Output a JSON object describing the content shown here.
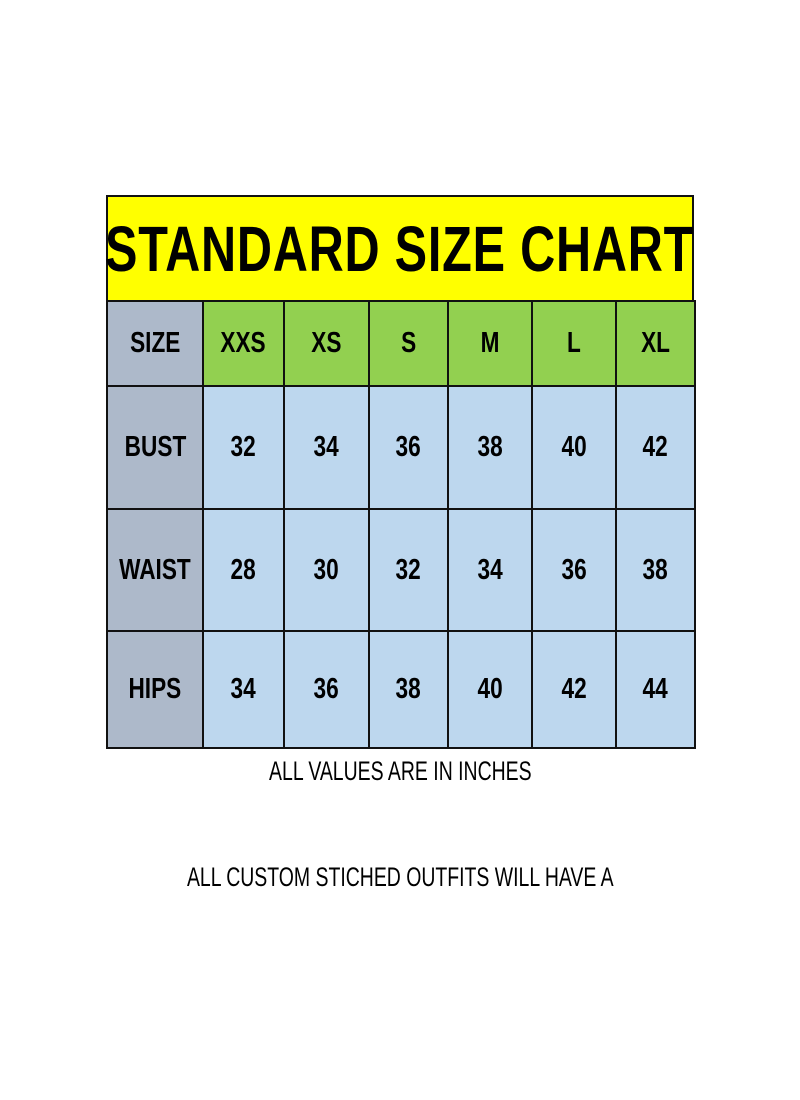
{
  "title": "STANDARD  SIZE  CHART",
  "table": {
    "corner": "SIZE",
    "columns": [
      "XXS",
      "XS",
      "S",
      "M",
      "L",
      "XL"
    ],
    "rows": [
      {
        "label": "BUST",
        "values": [
          "32",
          "34",
          "36",
          "38",
          "40",
          "42"
        ]
      },
      {
        "label": "WAIST",
        "values": [
          "28",
          "30",
          "32",
          "34",
          "36",
          "38"
        ]
      },
      {
        "label": "HIPS",
        "values": [
          "34",
          "36",
          "38",
          "40",
          "42",
          "44"
        ]
      }
    ]
  },
  "notes": {
    "units": "ALL VALUES ARE IN INCHES",
    "custom": "ALL CUSTOM STICHED OUTFITS WILL HAVE A"
  },
  "colors": {
    "title_bg": "#ffff00",
    "size_header_bg": "#92d050",
    "row_header_bg": "#adb9ca",
    "value_bg": "#bdd7ee"
  }
}
